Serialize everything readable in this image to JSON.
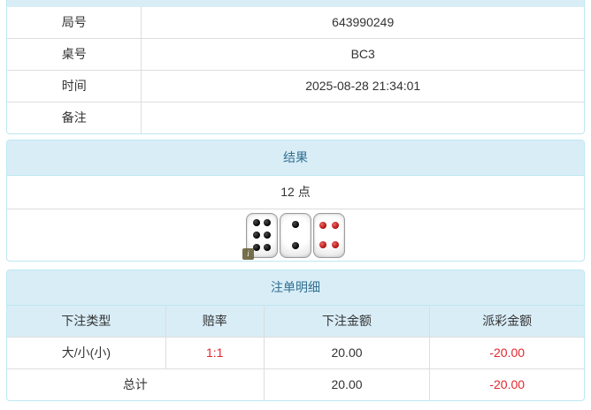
{
  "colors": {
    "panel_border": "#bce8f1",
    "heading_bg": "#d9edf7",
    "heading_text": "#31708f",
    "cell_border": "#dddddd",
    "body_text": "#333333",
    "negative_red": "#e0262d"
  },
  "game_info": {
    "rows": [
      {
        "label": "局号",
        "value": "643990249"
      },
      {
        "label": "桌号",
        "value": "BC3"
      },
      {
        "label": "时间",
        "value": "2025-08-28 21:34:01"
      },
      {
        "label": "备注",
        "value": ""
      }
    ]
  },
  "result_panel": {
    "title": "结果",
    "points": "12 点",
    "info_icon": "i",
    "dice": [
      {
        "value": 6,
        "color": "black"
      },
      {
        "value": 2,
        "color": "black"
      },
      {
        "value": 4,
        "color": "red"
      }
    ]
  },
  "bets_panel": {
    "title": "注单明细",
    "columns": [
      "下注类型",
      "赔率",
      "下注金额",
      "派彩金额"
    ],
    "rows": [
      {
        "bet_type": "大/小(小)",
        "odds": "1:1",
        "bet_amount": "20.00",
        "payout_amount": "-20.00"
      }
    ],
    "total": {
      "label": "总计",
      "bet_amount": "20.00",
      "payout_amount": "-20.00"
    }
  }
}
